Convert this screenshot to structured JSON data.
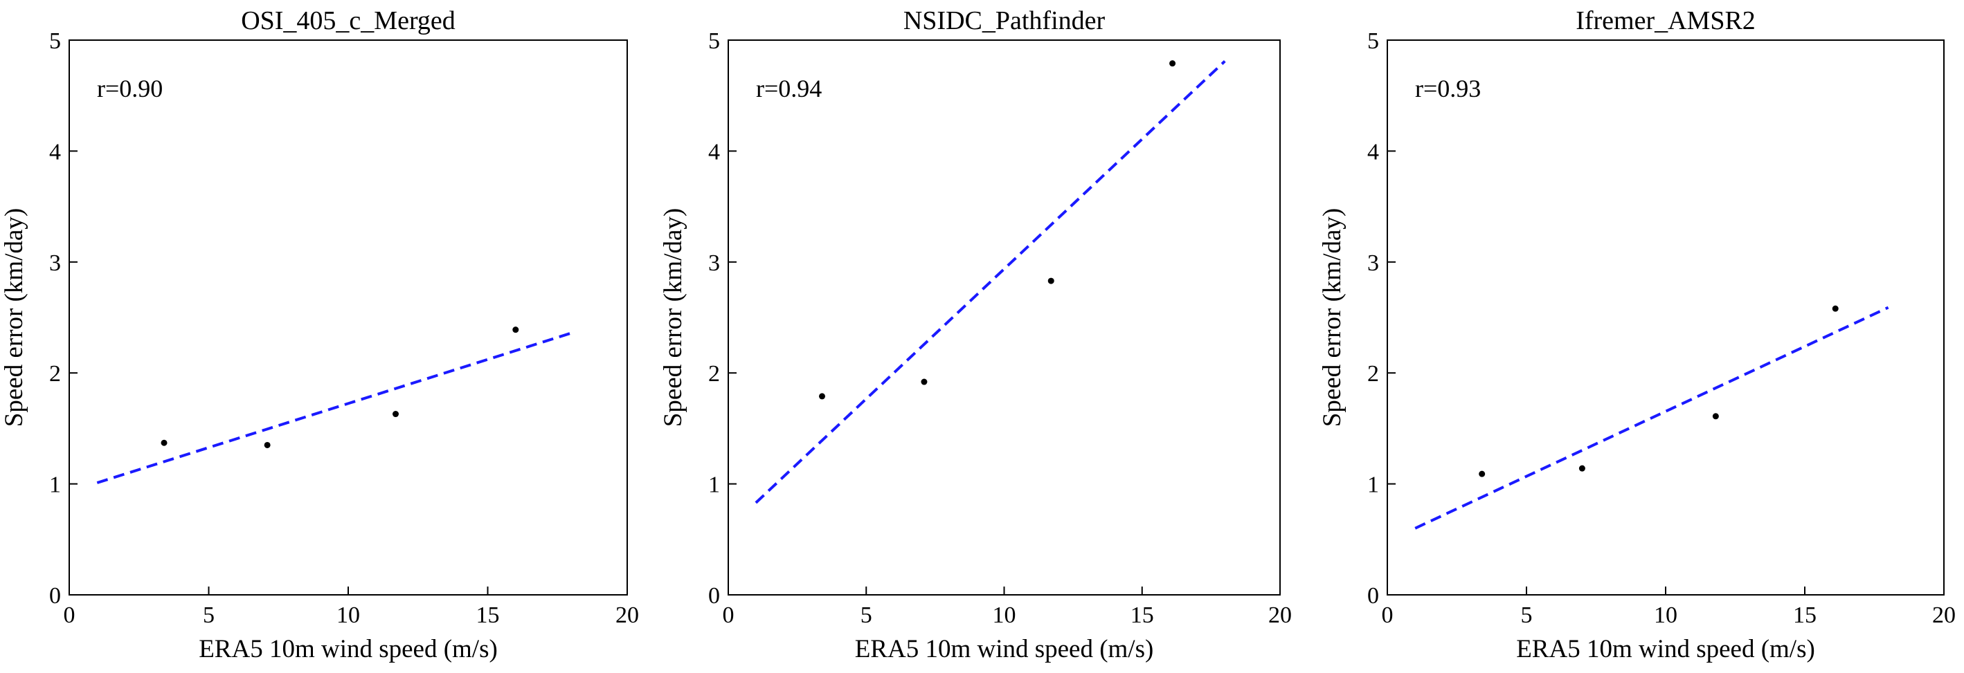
{
  "chart_data": [
    {
      "type": "scatter",
      "title": "OSI_405_c_Merged",
      "xlabel": "ERA5 10m wind speed (m/s)",
      "ylabel": "Speed error (km/day)",
      "xlim": [
        0,
        20
      ],
      "ylim": [
        0,
        5
      ],
      "xticks": [
        "0",
        "5",
        "10",
        "15",
        "20"
      ],
      "yticks": [
        "0",
        "1",
        "2",
        "3",
        "4",
        "5"
      ],
      "annotation": "r=0.90",
      "points": [
        {
          "x": 3.4,
          "y": 1.37
        },
        {
          "x": 7.1,
          "y": 1.35
        },
        {
          "x": 11.7,
          "y": 1.63
        },
        {
          "x": 16.0,
          "y": 2.39
        }
      ],
      "fit_line": {
        "x": [
          1.0,
          18.0
        ],
        "y": [
          1.01,
          2.36
        ],
        "color": "#1a1aff",
        "style": "dashed"
      },
      "grid": false
    },
    {
      "type": "scatter",
      "title": "NSIDC_Pathfinder",
      "xlabel": "ERA5 10m wind speed (m/s)",
      "ylabel": "Speed error (km/day)",
      "xlim": [
        0,
        20
      ],
      "ylim": [
        0,
        5
      ],
      "xticks": [
        "0",
        "5",
        "10",
        "15",
        "20"
      ],
      "yticks": [
        "0",
        "1",
        "2",
        "3",
        "4",
        "5"
      ],
      "annotation": "r=0.94",
      "points": [
        {
          "x": 3.4,
          "y": 1.79
        },
        {
          "x": 7.1,
          "y": 1.92
        },
        {
          "x": 11.7,
          "y": 2.83
        },
        {
          "x": 16.1,
          "y": 4.79
        }
      ],
      "fit_line": {
        "x": [
          1.0,
          18.0
        ],
        "y": [
          0.83,
          4.81
        ],
        "color": "#1a1aff",
        "style": "dashed"
      },
      "grid": false
    },
    {
      "type": "scatter",
      "title": "Ifremer_AMSR2",
      "xlabel": "ERA5 10m wind speed (m/s)",
      "ylabel": "Speed error (km/day)",
      "xlim": [
        0,
        20
      ],
      "ylim": [
        0,
        5
      ],
      "xticks": [
        "0",
        "5",
        "10",
        "15",
        "20"
      ],
      "yticks": [
        "0",
        "1",
        "2",
        "3",
        "4",
        "5"
      ],
      "annotation": "r=0.93",
      "points": [
        {
          "x": 3.4,
          "y": 1.09
        },
        {
          "x": 7.0,
          "y": 1.14
        },
        {
          "x": 11.8,
          "y": 1.61
        },
        {
          "x": 16.1,
          "y": 2.58
        }
      ],
      "fit_line": {
        "x": [
          1.0,
          18.0
        ],
        "y": [
          0.6,
          2.59
        ],
        "color": "#1a1aff",
        "style": "dashed"
      },
      "grid": false
    }
  ]
}
